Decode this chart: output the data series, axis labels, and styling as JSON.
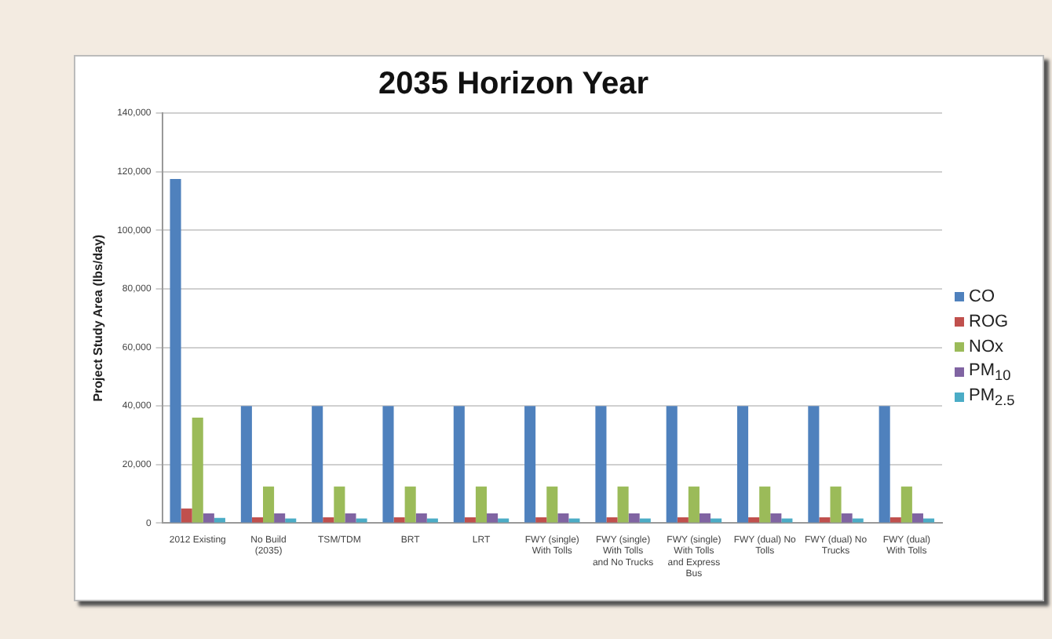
{
  "chart_data": {
    "type": "bar",
    "title": "2035 Horizon Year",
    "ylabel": "Project Study Area (lbs/day)",
    "categories": [
      "2012 Existing",
      "No Build (2035)",
      "TSM/TDM",
      "BRT",
      "LRT",
      "FWY (single) With Tolls",
      "FWY (single) With Tolls and No Trucks",
      "FWY (single) With Tolls and Express Bus",
      "FWY (dual) No Tolls",
      "FWY (dual) No Trucks",
      "FWY (dual) With Tolls"
    ],
    "series": [
      {
        "name": "CO",
        "color": "#4f81bd",
        "values": [
          117500,
          40000,
          40000,
          40000,
          40000,
          40000,
          40000,
          40000,
          40000,
          40000,
          40000
        ]
      },
      {
        "name": "ROG",
        "color": "#c0504d",
        "values": [
          5000,
          2000,
          2000,
          2000,
          2000,
          2000,
          2000,
          2000,
          2000,
          2000,
          2000
        ]
      },
      {
        "name": "NOx",
        "color": "#9bbb59",
        "values": [
          36000,
          12500,
          12500,
          12500,
          12500,
          12500,
          12500,
          12500,
          12500,
          12500,
          12500
        ]
      },
      {
        "name": "PM$_{10}$",
        "color": "#8064a2",
        "values": [
          3300,
          3300,
          3300,
          3300,
          3300,
          3300,
          3300,
          3300,
          3300,
          3300,
          3300
        ]
      },
      {
        "name": "PM$_{2.5}$",
        "color": "#4bacc6",
        "values": [
          1800,
          1600,
          1600,
          1600,
          1600,
          1600,
          1600,
          1600,
          1600,
          1600,
          1600
        ]
      }
    ],
    "ylim": [
      0,
      140000
    ],
    "yticks": [
      0,
      {
        "value": 20000,
        "label": "20,000"
      },
      {
        "value": 40000,
        "label": "40,000"
      },
      {
        "value": 60000,
        "label": "60,000"
      },
      {
        "value": 80000,
        "label": "80,000"
      },
      {
        "value": 100000,
        "label": "100,000"
      },
      {
        "value": 120000,
        "label": "120,000"
      },
      {
        "value": 140000,
        "label": "140,000"
      }
    ],
    "grid": "y",
    "legend": "right"
  }
}
